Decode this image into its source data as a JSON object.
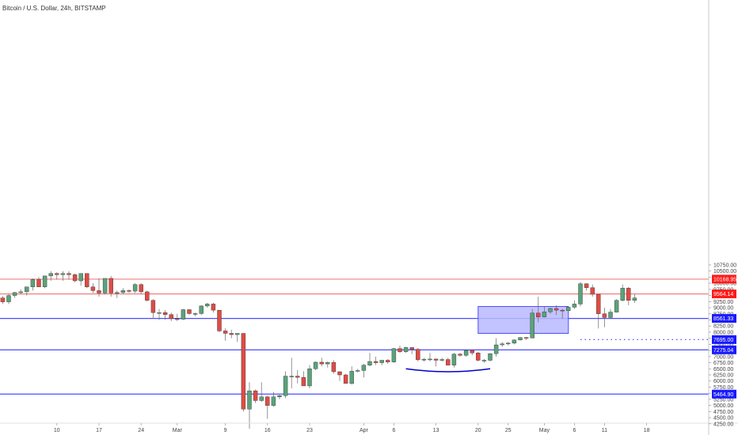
{
  "header": {
    "title": "Bitcoin / U.S. Dollar, 24h, BITSTAMP"
  },
  "colors": {
    "up": "#5aa37a",
    "down": "#e04b43",
    "red_line": "#f08080",
    "red_tag": "#ff1a1a",
    "blue_line": "#4d4dff",
    "blue_tag": "#1a1aff",
    "box_fill": "#b8b8ff",
    "box_stroke": "#4d4dff",
    "arc": "#0000cc"
  },
  "chart_data": {
    "type": "candlestick",
    "title": "Bitcoin / U.S. Dollar, 24h, BITSTAMP",
    "x_start": "2020-02-01",
    "x_end": "2020-05-21",
    "ylim": [
      4050,
      10900
    ],
    "y_ticks": [
      "10750.00",
      "10500.00",
      "10250.00",
      "10000.00",
      "9750.00",
      "9500.00",
      "9250.00",
      "9000.00",
      "8750.00",
      "8500.00",
      "8250.00",
      "8000.00",
      "7750.00",
      "7500.00",
      "7250.00",
      "7000.00",
      "6750.00",
      "6500.00",
      "6250.00",
      "6000.00",
      "5750.00",
      "5500.00",
      "5250.00",
      "5000.00",
      "4750.00",
      "4500.00",
      "4250.00"
    ],
    "x_ticks": [
      {
        "date": "2020-02-10",
        "label": "10"
      },
      {
        "date": "2020-02-17",
        "label": "17"
      },
      {
        "date": "2020-02-24",
        "label": "24"
      },
      {
        "date": "2020-03-01",
        "label": "Mar"
      },
      {
        "date": "2020-03-09",
        "label": "9"
      },
      {
        "date": "2020-03-16",
        "label": "16"
      },
      {
        "date": "2020-03-23",
        "label": "23"
      },
      {
        "date": "2020-04-01",
        "label": "Apr"
      },
      {
        "date": "2020-04-06",
        "label": "6"
      },
      {
        "date": "2020-04-13",
        "label": "13"
      },
      {
        "date": "2020-04-20",
        "label": "20"
      },
      {
        "date": "2020-04-25",
        "label": "25"
      },
      {
        "date": "2020-05-01",
        "label": "May"
      },
      {
        "date": "2020-05-06",
        "label": "6"
      },
      {
        "date": "2020-05-11",
        "label": "11"
      },
      {
        "date": "2020-05-18",
        "label": "18"
      }
    ],
    "candles": [
      {
        "date": "2020-02-01",
        "o": 9400,
        "h": 9480,
        "l": 9150,
        "c": 9240
      },
      {
        "date": "2020-02-02",
        "o": 9240,
        "h": 9550,
        "l": 9150,
        "c": 9500
      },
      {
        "date": "2020-02-03",
        "o": 9500,
        "h": 9650,
        "l": 9400,
        "c": 9620
      },
      {
        "date": "2020-02-04",
        "o": 9620,
        "h": 9750,
        "l": 9550,
        "c": 9650
      },
      {
        "date": "2020-02-05",
        "o": 9650,
        "h": 9850,
        "l": 9500,
        "c": 9850
      },
      {
        "date": "2020-02-06",
        "o": 9850,
        "h": 10200,
        "l": 9700,
        "c": 10150
      },
      {
        "date": "2020-02-07",
        "o": 10150,
        "h": 10250,
        "l": 9850,
        "c": 9850
      },
      {
        "date": "2020-02-08",
        "o": 9850,
        "h": 10250,
        "l": 9800,
        "c": 10300
      },
      {
        "date": "2020-02-09",
        "o": 10300,
        "h": 10500,
        "l": 10100,
        "c": 10400
      },
      {
        "date": "2020-02-10",
        "o": 10400,
        "h": 10450,
        "l": 10150,
        "c": 10350
      },
      {
        "date": "2020-02-11",
        "o": 10350,
        "h": 10500,
        "l": 10100,
        "c": 10400
      },
      {
        "date": "2020-02-12",
        "o": 10400,
        "h": 10500,
        "l": 10150,
        "c": 10350
      },
      {
        "date": "2020-02-13",
        "o": 10350,
        "h": 10400,
        "l": 10050,
        "c": 10100
      },
      {
        "date": "2020-02-14",
        "o": 10100,
        "h": 10400,
        "l": 9900,
        "c": 10400
      },
      {
        "date": "2020-02-15",
        "o": 10400,
        "h": 10400,
        "l": 9800,
        "c": 9850
      },
      {
        "date": "2020-02-16",
        "o": 9850,
        "h": 10000,
        "l": 9600,
        "c": 9700
      },
      {
        "date": "2020-02-17",
        "o": 9700,
        "h": 10200,
        "l": 9450,
        "c": 9600
      },
      {
        "date": "2020-02-18",
        "o": 9600,
        "h": 10200,
        "l": 9550,
        "c": 10200
      },
      {
        "date": "2020-02-19",
        "o": 10200,
        "h": 10300,
        "l": 9450,
        "c": 9600
      },
      {
        "date": "2020-02-20",
        "o": 9600,
        "h": 9700,
        "l": 9400,
        "c": 9620
      },
      {
        "date": "2020-02-21",
        "o": 9620,
        "h": 9800,
        "l": 9550,
        "c": 9700
      },
      {
        "date": "2020-02-22",
        "o": 9700,
        "h": 9750,
        "l": 9600,
        "c": 9680
      },
      {
        "date": "2020-02-23",
        "o": 9680,
        "h": 10000,
        "l": 9600,
        "c": 9950
      },
      {
        "date": "2020-02-24",
        "o": 9950,
        "h": 10000,
        "l": 9550,
        "c": 9650
      },
      {
        "date": "2020-02-25",
        "o": 9650,
        "h": 9700,
        "l": 9250,
        "c": 9300
      },
      {
        "date": "2020-02-26",
        "o": 9300,
        "h": 9350,
        "l": 8550,
        "c": 8800
      },
      {
        "date": "2020-02-27",
        "o": 8800,
        "h": 8950,
        "l": 8500,
        "c": 8800
      },
      {
        "date": "2020-02-28",
        "o": 8800,
        "h": 8900,
        "l": 8500,
        "c": 8720
      },
      {
        "date": "2020-02-29",
        "o": 8720,
        "h": 8800,
        "l": 8450,
        "c": 8550
      },
      {
        "date": "2020-03-01",
        "o": 8550,
        "h": 8750,
        "l": 8450,
        "c": 8530
      },
      {
        "date": "2020-03-02",
        "o": 8530,
        "h": 8950,
        "l": 8500,
        "c": 8920
      },
      {
        "date": "2020-03-03",
        "o": 8920,
        "h": 8950,
        "l": 8700,
        "c": 8760
      },
      {
        "date": "2020-03-04",
        "o": 8760,
        "h": 8800,
        "l": 8650,
        "c": 8760
      },
      {
        "date": "2020-03-05",
        "o": 8760,
        "h": 9100,
        "l": 8700,
        "c": 9070
      },
      {
        "date": "2020-03-06",
        "o": 9070,
        "h": 9200,
        "l": 9000,
        "c": 9150
      },
      {
        "date": "2020-03-07",
        "o": 9150,
        "h": 9200,
        "l": 8800,
        "c": 8900
      },
      {
        "date": "2020-03-08",
        "o": 8900,
        "h": 8900,
        "l": 8000,
        "c": 8050
      },
      {
        "date": "2020-03-09",
        "o": 8050,
        "h": 8150,
        "l": 7650,
        "c": 7950
      },
      {
        "date": "2020-03-10",
        "o": 7950,
        "h": 8100,
        "l": 7750,
        "c": 7900
      },
      {
        "date": "2020-03-11",
        "o": 7900,
        "h": 7950,
        "l": 7600,
        "c": 7950
      },
      {
        "date": "2020-03-12",
        "o": 7950,
        "h": 7950,
        "l": 4750,
        "c": 4850
      },
      {
        "date": "2020-03-13",
        "o": 4850,
        "h": 5950,
        "l": 4050,
        "c": 5600
      },
      {
        "date": "2020-03-14",
        "o": 5600,
        "h": 5650,
        "l": 5100,
        "c": 5200
      },
      {
        "date": "2020-03-15",
        "o": 5200,
        "h": 5950,
        "l": 5150,
        "c": 5350
      },
      {
        "date": "2020-03-16",
        "o": 5350,
        "h": 5400,
        "l": 4450,
        "c": 5000
      },
      {
        "date": "2020-03-17",
        "o": 5000,
        "h": 5550,
        "l": 4950,
        "c": 5350
      },
      {
        "date": "2020-03-18",
        "o": 5350,
        "h": 5450,
        "l": 5250,
        "c": 5400
      },
      {
        "date": "2020-03-19",
        "o": 5400,
        "h": 6400,
        "l": 5300,
        "c": 6200
      },
      {
        "date": "2020-03-20",
        "o": 6200,
        "h": 6950,
        "l": 5700,
        "c": 6200
      },
      {
        "date": "2020-03-21",
        "o": 6200,
        "h": 6450,
        "l": 5900,
        "c": 6150
      },
      {
        "date": "2020-03-22",
        "o": 6150,
        "h": 6400,
        "l": 5800,
        "c": 5800
      },
      {
        "date": "2020-03-23",
        "o": 5800,
        "h": 6650,
        "l": 5700,
        "c": 6500
      },
      {
        "date": "2020-03-24",
        "o": 6500,
        "h": 6800,
        "l": 6450,
        "c": 6770
      },
      {
        "date": "2020-03-25",
        "o": 6770,
        "h": 6950,
        "l": 6600,
        "c": 6700
      },
      {
        "date": "2020-03-26",
        "o": 6700,
        "h": 6800,
        "l": 6550,
        "c": 6760
      },
      {
        "date": "2020-03-27",
        "o": 6760,
        "h": 6850,
        "l": 6300,
        "c": 6380
      },
      {
        "date": "2020-03-28",
        "o": 6380,
        "h": 6400,
        "l": 6000,
        "c": 6250
      },
      {
        "date": "2020-03-29",
        "o": 6250,
        "h": 6300,
        "l": 5900,
        "c": 5900
      },
      {
        "date": "2020-03-30",
        "o": 5900,
        "h": 6600,
        "l": 5850,
        "c": 6400
      },
      {
        "date": "2020-03-31",
        "o": 6400,
        "h": 6500,
        "l": 6350,
        "c": 6430
      },
      {
        "date": "2020-04-01",
        "o": 6430,
        "h": 6700,
        "l": 6150,
        "c": 6650
      },
      {
        "date": "2020-04-02",
        "o": 6650,
        "h": 7150,
        "l": 6600,
        "c": 6800
      },
      {
        "date": "2020-04-03",
        "o": 6800,
        "h": 7000,
        "l": 6650,
        "c": 6750
      },
      {
        "date": "2020-04-04",
        "o": 6750,
        "h": 6850,
        "l": 6650,
        "c": 6850
      },
      {
        "date": "2020-04-05",
        "o": 6850,
        "h": 6900,
        "l": 6700,
        "c": 6780
      },
      {
        "date": "2020-04-06",
        "o": 6780,
        "h": 7350,
        "l": 6750,
        "c": 7330
      },
      {
        "date": "2020-04-07",
        "o": 7330,
        "h": 7450,
        "l": 7150,
        "c": 7200
      },
      {
        "date": "2020-04-08",
        "o": 7200,
        "h": 7400,
        "l": 7150,
        "c": 7370
      },
      {
        "date": "2020-04-09",
        "o": 7370,
        "h": 7380,
        "l": 7100,
        "c": 7300
      },
      {
        "date": "2020-04-10",
        "o": 7300,
        "h": 7350,
        "l": 6800,
        "c": 6870
      },
      {
        "date": "2020-04-11",
        "o": 6870,
        "h": 6950,
        "l": 6800,
        "c": 6890
      },
      {
        "date": "2020-04-12",
        "o": 6890,
        "h": 7150,
        "l": 6800,
        "c": 6900
      },
      {
        "date": "2020-04-13",
        "o": 6900,
        "h": 6920,
        "l": 6600,
        "c": 6850
      },
      {
        "date": "2020-04-14",
        "o": 6850,
        "h": 6950,
        "l": 6800,
        "c": 6880
      },
      {
        "date": "2020-04-15",
        "o": 6880,
        "h": 6950,
        "l": 6650,
        "c": 6650
      },
      {
        "date": "2020-04-16",
        "o": 6650,
        "h": 7150,
        "l": 6550,
        "c": 7100
      },
      {
        "date": "2020-04-17",
        "o": 7100,
        "h": 7150,
        "l": 7000,
        "c": 7050
      },
      {
        "date": "2020-04-18",
        "o": 7050,
        "h": 7300,
        "l": 7000,
        "c": 7250
      },
      {
        "date": "2020-04-19",
        "o": 7250,
        "h": 7300,
        "l": 7050,
        "c": 7150
      },
      {
        "date": "2020-04-20",
        "o": 7150,
        "h": 7200,
        "l": 6800,
        "c": 6850
      },
      {
        "date": "2020-04-21",
        "o": 6850,
        "h": 6900,
        "l": 6750,
        "c": 6850
      },
      {
        "date": "2020-04-22",
        "o": 6850,
        "h": 7150,
        "l": 6800,
        "c": 7120
      },
      {
        "date": "2020-04-23",
        "o": 7120,
        "h": 7750,
        "l": 7000,
        "c": 7480
      },
      {
        "date": "2020-04-24",
        "o": 7480,
        "h": 7600,
        "l": 7400,
        "c": 7520
      },
      {
        "date": "2020-04-25",
        "o": 7520,
        "h": 7600,
        "l": 7450,
        "c": 7550
      },
      {
        "date": "2020-04-26",
        "o": 7550,
        "h": 7700,
        "l": 7500,
        "c": 7680
      },
      {
        "date": "2020-04-27",
        "o": 7680,
        "h": 7800,
        "l": 7650,
        "c": 7780
      },
      {
        "date": "2020-04-28",
        "o": 7780,
        "h": 7800,
        "l": 7680,
        "c": 7760
      },
      {
        "date": "2020-04-29",
        "o": 7760,
        "h": 8950,
        "l": 7750,
        "c": 8780
      },
      {
        "date": "2020-04-30",
        "o": 8780,
        "h": 9450,
        "l": 8400,
        "c": 8620
      },
      {
        "date": "2020-05-01",
        "o": 8620,
        "h": 9050,
        "l": 8600,
        "c": 8830
      },
      {
        "date": "2020-05-02",
        "o": 8830,
        "h": 9000,
        "l": 8750,
        "c": 8970
      },
      {
        "date": "2020-05-03",
        "o": 8970,
        "h": 9100,
        "l": 8700,
        "c": 8900
      },
      {
        "date": "2020-05-04",
        "o": 8900,
        "h": 8950,
        "l": 8550,
        "c": 8880
      },
      {
        "date": "2020-05-05",
        "o": 8880,
        "h": 9050,
        "l": 8800,
        "c": 9020
      },
      {
        "date": "2020-05-06",
        "o": 9020,
        "h": 9300,
        "l": 8950,
        "c": 9150
      },
      {
        "date": "2020-05-07",
        "o": 9150,
        "h": 10050,
        "l": 9050,
        "c": 9980
      },
      {
        "date": "2020-05-08",
        "o": 9980,
        "h": 10000,
        "l": 9700,
        "c": 9820
      },
      {
        "date": "2020-05-09",
        "o": 9820,
        "h": 9950,
        "l": 9450,
        "c": 9550
      },
      {
        "date": "2020-05-10",
        "o": 9550,
        "h": 9550,
        "l": 8150,
        "c": 8750
      },
      {
        "date": "2020-05-11",
        "o": 8750,
        "h": 9000,
        "l": 8200,
        "c": 8600
      },
      {
        "date": "2020-05-12",
        "o": 8600,
        "h": 8950,
        "l": 8550,
        "c": 8820
      },
      {
        "date": "2020-05-13",
        "o": 8820,
        "h": 9350,
        "l": 8800,
        "c": 9300
      },
      {
        "date": "2020-05-14",
        "o": 9300,
        "h": 9950,
        "l": 9250,
        "c": 9800
      },
      {
        "date": "2020-05-15",
        "o": 9800,
        "h": 9850,
        "l": 9100,
        "c": 9300
      },
      {
        "date": "2020-05-16",
        "o": 9300,
        "h": 9550,
        "l": 9200,
        "c": 9400
      }
    ],
    "levels": [
      {
        "value": 10168.95,
        "label": "10168.95",
        "color": "red"
      },
      {
        "value": 9564.14,
        "label": "9564.14",
        "color": "red"
      },
      {
        "value": 8561.33,
        "label": "8561.33",
        "color": "blue"
      },
      {
        "value": 7275.04,
        "label": "7275.04",
        "color": "blue"
      },
      {
        "value": 5464.9,
        "label": "5464.90",
        "color": "blue"
      }
    ],
    "price_marker": {
      "value": 7695.0,
      "label": "7695.00",
      "from_date": "2020-05-07"
    },
    "rectangle": {
      "x0": "2020-04-20",
      "x1": "2020-05-05",
      "y0": 7950,
      "y1": 9050
    },
    "arc": {
      "x0": "2020-04-08",
      "x1": "2020-04-22",
      "y_ends": 6500,
      "y_bottom": 6380
    }
  }
}
